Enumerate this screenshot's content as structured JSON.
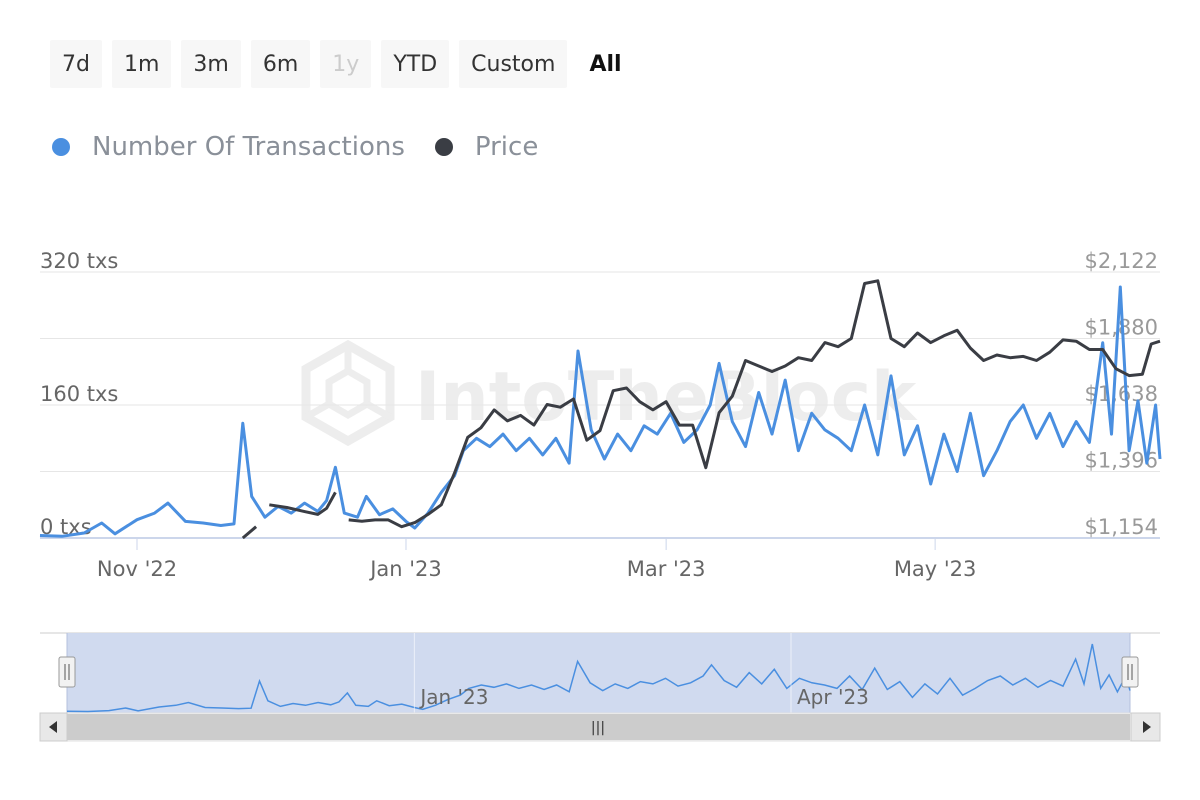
{
  "range_selector": {
    "buttons": [
      {
        "label": "7d",
        "state": "normal"
      },
      {
        "label": "1m",
        "state": "normal"
      },
      {
        "label": "3m",
        "state": "normal"
      },
      {
        "label": "6m",
        "state": "normal"
      },
      {
        "label": "1y",
        "state": "disabled"
      },
      {
        "label": "YTD",
        "state": "normal"
      },
      {
        "label": "Custom",
        "state": "normal"
      },
      {
        "label": "All",
        "state": "active"
      }
    ]
  },
  "legend": [
    {
      "name": "Number Of Transactions",
      "color": "#4a8fe0"
    },
    {
      "name": "Price",
      "color": "#3a3d44"
    }
  ],
  "watermark": "IntoTheBlock",
  "colors": {
    "transactions": "#4a8fe0",
    "price": "#3a3d44",
    "navigator_fill": "#ced8ee",
    "gridline": "#e6e6e6",
    "axis_line": "#ccd6eb"
  },
  "chart_data": {
    "type": "line",
    "x_start": "2022-10-10",
    "x_end": "2023-06-21",
    "xticks": [
      {
        "date": "2022-11-01",
        "label": "Nov '22"
      },
      {
        "date": "2023-01-01",
        "label": "Jan '23"
      },
      {
        "date": "2023-03-01",
        "label": "Mar '23"
      },
      {
        "date": "2023-05-01",
        "label": "May '23"
      }
    ],
    "y_left": {
      "min": 0,
      "max": 320,
      "ticks": [
        {
          "value": 0,
          "label": "0 txs"
        },
        {
          "value": 160,
          "label": "160 txs"
        },
        {
          "value": 320,
          "label": "320 txs"
        }
      ]
    },
    "y_right": {
      "min": 1154,
      "max": 2122,
      "ticks": [
        {
          "value": 1154,
          "label": "$1,154"
        },
        {
          "value": 1396,
          "label": "$1,396"
        },
        {
          "value": 1638,
          "label": "$1,638"
        },
        {
          "value": 1880,
          "label": "$1,880"
        },
        {
          "value": 2122,
          "label": "$2,122"
        }
      ]
    },
    "series": [
      {
        "name": "Number Of Transactions",
        "axis": "left",
        "points": [
          [
            "2022-10-10",
            3
          ],
          [
            "2022-10-15",
            2
          ],
          [
            "2022-10-20",
            6
          ],
          [
            "2022-10-24",
            18
          ],
          [
            "2022-10-27",
            5
          ],
          [
            "2022-11-01",
            22
          ],
          [
            "2022-11-05",
            30
          ],
          [
            "2022-11-08",
            42
          ],
          [
            "2022-11-12",
            20
          ],
          [
            "2022-11-16",
            18
          ],
          [
            "2022-11-20",
            15
          ],
          [
            "2022-11-23",
            17
          ],
          [
            "2022-11-25",
            138
          ],
          [
            "2022-11-27",
            50
          ],
          [
            "2022-11-30",
            25
          ],
          [
            "2022-12-03",
            38
          ],
          [
            "2022-12-06",
            30
          ],
          [
            "2022-12-09",
            42
          ],
          [
            "2022-12-12",
            32
          ],
          [
            "2022-12-14",
            45
          ],
          [
            "2022-12-16",
            85
          ],
          [
            "2022-12-18",
            30
          ],
          [
            "2022-12-21",
            25
          ],
          [
            "2022-12-23",
            50
          ],
          [
            "2022-12-26",
            28
          ],
          [
            "2022-12-29",
            35
          ],
          [
            "2023-01-01",
            20
          ],
          [
            "2023-01-03",
            12
          ],
          [
            "2023-01-06",
            30
          ],
          [
            "2023-01-09",
            55
          ],
          [
            "2023-01-12",
            75
          ],
          [
            "2023-01-14",
            105
          ],
          [
            "2023-01-17",
            120
          ],
          [
            "2023-01-20",
            110
          ],
          [
            "2023-01-23",
            125
          ],
          [
            "2023-01-26",
            105
          ],
          [
            "2023-01-29",
            120
          ],
          [
            "2023-02-01",
            100
          ],
          [
            "2023-02-04",
            120
          ],
          [
            "2023-02-07",
            90
          ],
          [
            "2023-02-09",
            225
          ],
          [
            "2023-02-12",
            130
          ],
          [
            "2023-02-15",
            95
          ],
          [
            "2023-02-18",
            125
          ],
          [
            "2023-02-21",
            105
          ],
          [
            "2023-02-24",
            135
          ],
          [
            "2023-02-27",
            125
          ],
          [
            "2023-03-02",
            150
          ],
          [
            "2023-03-05",
            115
          ],
          [
            "2023-03-08",
            130
          ],
          [
            "2023-03-11",
            160
          ],
          [
            "2023-03-13",
            210
          ],
          [
            "2023-03-16",
            140
          ],
          [
            "2023-03-19",
            110
          ],
          [
            "2023-03-22",
            175
          ],
          [
            "2023-03-25",
            125
          ],
          [
            "2023-03-28",
            190
          ],
          [
            "2023-03-31",
            105
          ],
          [
            "2023-04-03",
            150
          ],
          [
            "2023-04-06",
            130
          ],
          [
            "2023-04-09",
            120
          ],
          [
            "2023-04-12",
            105
          ],
          [
            "2023-04-15",
            160
          ],
          [
            "2023-04-18",
            100
          ],
          [
            "2023-04-21",
            195
          ],
          [
            "2023-04-24",
            100
          ],
          [
            "2023-04-27",
            135
          ],
          [
            "2023-04-30",
            65
          ],
          [
            "2023-05-03",
            125
          ],
          [
            "2023-05-06",
            80
          ],
          [
            "2023-05-09",
            150
          ],
          [
            "2023-05-12",
            75
          ],
          [
            "2023-05-15",
            105
          ],
          [
            "2023-05-18",
            140
          ],
          [
            "2023-05-21",
            160
          ],
          [
            "2023-05-24",
            120
          ],
          [
            "2023-05-27",
            150
          ],
          [
            "2023-05-30",
            110
          ],
          [
            "2023-06-02",
            140
          ],
          [
            "2023-06-05",
            115
          ],
          [
            "2023-06-08",
            235
          ],
          [
            "2023-06-10",
            125
          ],
          [
            "2023-06-12",
            302
          ],
          [
            "2023-06-14",
            105
          ],
          [
            "2023-06-16",
            165
          ],
          [
            "2023-06-18",
            90
          ],
          [
            "2023-06-20",
            160
          ],
          [
            "2023-06-21",
            95
          ]
        ]
      },
      {
        "name": "Price",
        "axis": "right",
        "segments": [
          [
            [
              "2022-11-25",
              1154
            ],
            [
              "2022-11-28",
              1195
            ]
          ],
          [
            [
              "2022-12-01",
              1275
            ],
            [
              "2022-12-05",
              1265
            ],
            [
              "2022-12-09",
              1250
            ],
            [
              "2022-12-12",
              1240
            ],
            [
              "2022-12-14",
              1262
            ],
            [
              "2022-12-16",
              1320
            ]
          ],
          [
            [
              "2022-12-19",
              1220
            ],
            [
              "2022-12-22",
              1215
            ],
            [
              "2022-12-25",
              1220
            ],
            [
              "2022-12-28",
              1220
            ],
            [
              "2022-12-31",
              1195
            ],
            [
              "2023-01-03",
              1210
            ],
            [
              "2023-01-06",
              1240
            ],
            [
              "2023-01-09",
              1275
            ],
            [
              "2023-01-12",
              1390
            ],
            [
              "2023-01-15",
              1520
            ],
            [
              "2023-01-18",
              1555
            ],
            [
              "2023-01-21",
              1620
            ],
            [
              "2023-01-24",
              1580
            ],
            [
              "2023-01-27",
              1600
            ],
            [
              "2023-01-30",
              1565
            ],
            [
              "2023-02-02",
              1640
            ],
            [
              "2023-02-05",
              1630
            ],
            [
              "2023-02-08",
              1660
            ],
            [
              "2023-02-11",
              1510
            ],
            [
              "2023-02-14",
              1545
            ],
            [
              "2023-02-17",
              1690
            ],
            [
              "2023-02-20",
              1700
            ],
            [
              "2023-02-23",
              1650
            ],
            [
              "2023-02-26",
              1620
            ],
            [
              "2023-03-01",
              1650
            ],
            [
              "2023-03-04",
              1565
            ],
            [
              "2023-03-07",
              1565
            ],
            [
              "2023-03-10",
              1410
            ],
            [
              "2023-03-13",
              1610
            ],
            [
              "2023-03-16",
              1670
            ],
            [
              "2023-03-19",
              1800
            ],
            [
              "2023-03-22",
              1780
            ],
            [
              "2023-03-25",
              1760
            ],
            [
              "2023-03-28",
              1780
            ],
            [
              "2023-03-31",
              1810
            ],
            [
              "2023-04-03",
              1800
            ],
            [
              "2023-04-06",
              1865
            ],
            [
              "2023-04-09",
              1850
            ],
            [
              "2023-04-12",
              1880
            ],
            [
              "2023-04-15",
              2080
            ],
            [
              "2023-04-18",
              2090
            ],
            [
              "2023-04-21",
              1880
            ],
            [
              "2023-04-24",
              1850
            ],
            [
              "2023-04-27",
              1900
            ],
            [
              "2023-04-30",
              1865
            ],
            [
              "2023-05-03",
              1890
            ],
            [
              "2023-05-06",
              1910
            ],
            [
              "2023-05-09",
              1845
            ],
            [
              "2023-05-12",
              1800
            ],
            [
              "2023-05-15",
              1820
            ],
            [
              "2023-05-18",
              1810
            ],
            [
              "2023-05-21",
              1815
            ],
            [
              "2023-05-24",
              1800
            ],
            [
              "2023-05-27",
              1830
            ],
            [
              "2023-05-30",
              1875
            ],
            [
              "2023-06-02",
              1870
            ],
            [
              "2023-06-05",
              1840
            ],
            [
              "2023-06-08",
              1840
            ],
            [
              "2023-06-11",
              1770
            ],
            [
              "2023-06-14",
              1745
            ],
            [
              "2023-06-17",
              1750
            ],
            [
              "2023-06-19",
              1860
            ],
            [
              "2023-06-21",
              1870
            ]
          ]
        ]
      }
    ],
    "grid": true
  },
  "navigator": {
    "labels": [
      {
        "date": "2023-01-01",
        "label": "Jan '23"
      },
      {
        "date": "2023-04-01",
        "label": "Apr '23"
      }
    ]
  },
  "scrollbar": {
    "thumb_glyph": "|||"
  }
}
